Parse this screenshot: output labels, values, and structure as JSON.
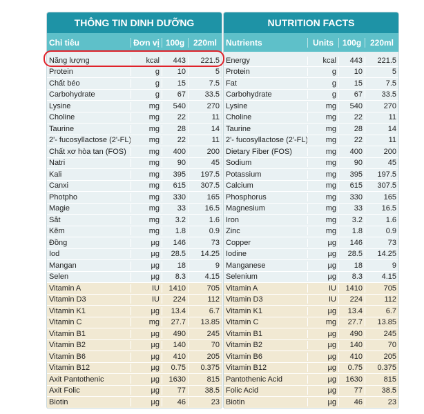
{
  "vi_panel": {
    "title": "THÔNG TIN DINH DƯỠNG",
    "headers": [
      "Chỉ tiêu",
      "Đơn vị",
      "100g",
      "220ml"
    ],
    "rows": [
      [
        "Năng lượng",
        "kcal",
        "443",
        "221.5"
      ],
      [
        "Protein",
        "g",
        "10",
        "5"
      ],
      [
        "Chất béo",
        "g",
        "15",
        "7.5"
      ],
      [
        "Carbohydrate",
        "g",
        "67",
        "33.5"
      ],
      [
        "Lysine",
        "mg",
        "540",
        "270"
      ],
      [
        "Choline",
        "mg",
        "22",
        "11"
      ],
      [
        "Taurine",
        "mg",
        "28",
        "14"
      ],
      [
        "2'- fucosyllactose (2'-FL)",
        "mg",
        "22",
        "11"
      ],
      [
        "Chất xơ hòa tan (FOS)",
        "mg",
        "400",
        "200"
      ],
      [
        "Natri",
        "mg",
        "90",
        "45"
      ],
      [
        "Kali",
        "mg",
        "395",
        "197.5"
      ],
      [
        "Canxi",
        "mg",
        "615",
        "307.5"
      ],
      [
        "Photpho",
        "mg",
        "330",
        "165"
      ],
      [
        "Magie",
        "mg",
        "33",
        "16.5"
      ],
      [
        "Sắt",
        "mg",
        "3.2",
        "1.6"
      ],
      [
        "Kẽm",
        "mg",
        "1.8",
        "0.9"
      ],
      [
        "Đồng",
        "µg",
        "146",
        "73"
      ],
      [
        "Iod",
        "µg",
        "28.5",
        "14.25"
      ],
      [
        "Mangan",
        "µg",
        "18",
        "9"
      ],
      [
        "Selen",
        "µg",
        "8.3",
        "4.15"
      ],
      [
        "Vitamin A",
        "IU",
        "1410",
        "705"
      ],
      [
        "Vitamin D3",
        "IU",
        "224",
        "112"
      ],
      [
        "Vitamin K1",
        "µg",
        "13.4",
        "6.7"
      ],
      [
        "Vitamin C",
        "mg",
        "27.7",
        "13.85"
      ],
      [
        "Vitamin B1",
        "µg",
        "490",
        "245"
      ],
      [
        "Vitamin B2",
        "µg",
        "140",
        "70"
      ],
      [
        "Vitamin B6",
        "µg",
        "410",
        "205"
      ],
      [
        "Vitamin B12",
        "µg",
        "0.75",
        "0.375"
      ],
      [
        "Axit Pantothenic",
        "µg",
        "1630",
        "815"
      ],
      [
        "Axit Folic",
        "µg",
        "77",
        "38.5"
      ],
      [
        "Biotin",
        "µg",
        "46",
        "23"
      ]
    ]
  },
  "en_panel": {
    "title": "NUTRITION FACTS",
    "headers": [
      "Nutrients",
      "Units",
      "100g",
      "220ml"
    ],
    "rows": [
      [
        "Energy",
        "kcal",
        "443",
        "221.5"
      ],
      [
        "Protein",
        "g",
        "10",
        "5"
      ],
      [
        "Fat",
        "g",
        "15",
        "7.5"
      ],
      [
        "Carbohydrate",
        "g",
        "67",
        "33.5"
      ],
      [
        "Lysine",
        "mg",
        "540",
        "270"
      ],
      [
        "Choline",
        "mg",
        "22",
        "11"
      ],
      [
        "Taurine",
        "mg",
        "28",
        "14"
      ],
      [
        "2'- fucosyllactose (2'-FL)",
        "mg",
        "22",
        "11"
      ],
      [
        "Dietary Fiber (FOS)",
        "mg",
        "400",
        "200"
      ],
      [
        "Sodium",
        "mg",
        "90",
        "45"
      ],
      [
        "Potassium",
        "mg",
        "395",
        "197.5"
      ],
      [
        "Calcium",
        "mg",
        "615",
        "307.5"
      ],
      [
        "Phosphorus",
        "mg",
        "330",
        "165"
      ],
      [
        "Magnesium",
        "mg",
        "33",
        "16.5"
      ],
      [
        "Iron",
        "mg",
        "3.2",
        "1.6"
      ],
      [
        "Zinc",
        "mg",
        "1.8",
        "0.9"
      ],
      [
        "Copper",
        "µg",
        "146",
        "73"
      ],
      [
        "Iodine",
        "µg",
        "28.5",
        "14.25"
      ],
      [
        "Manganese",
        "µg",
        "18",
        "9"
      ],
      [
        "Selenium",
        "µg",
        "8.3",
        "4.15"
      ],
      [
        "Vitamin A",
        "IU",
        "1410",
        "705"
      ],
      [
        "Vitamin D3",
        "IU",
        "224",
        "112"
      ],
      [
        "Vitamin K1",
        "µg",
        "13.4",
        "6.7"
      ],
      [
        "Vitamin C",
        "mg",
        "27.7",
        "13.85"
      ],
      [
        "Vitamin B1",
        "µg",
        "490",
        "245"
      ],
      [
        "Vitamin B2",
        "µg",
        "140",
        "70"
      ],
      [
        "Vitamin B6",
        "µg",
        "410",
        "205"
      ],
      [
        "Vitamin B12",
        "µg",
        "0.75",
        "0.375"
      ],
      [
        "Pantothenic Acid",
        "µg",
        "1630",
        "815"
      ],
      [
        "Folic Acid",
        "µg",
        "77",
        "38.5"
      ],
      [
        "Biotin",
        "µg",
        "46",
        "23"
      ]
    ]
  },
  "colors": {
    "title_bg": "#1e93a6",
    "header_bg": "#5ec0c9",
    "row_bg": "#e9f1f3",
    "vitamin_row_bg": "#f1e9d3",
    "highlight": "#e0222a"
  }
}
